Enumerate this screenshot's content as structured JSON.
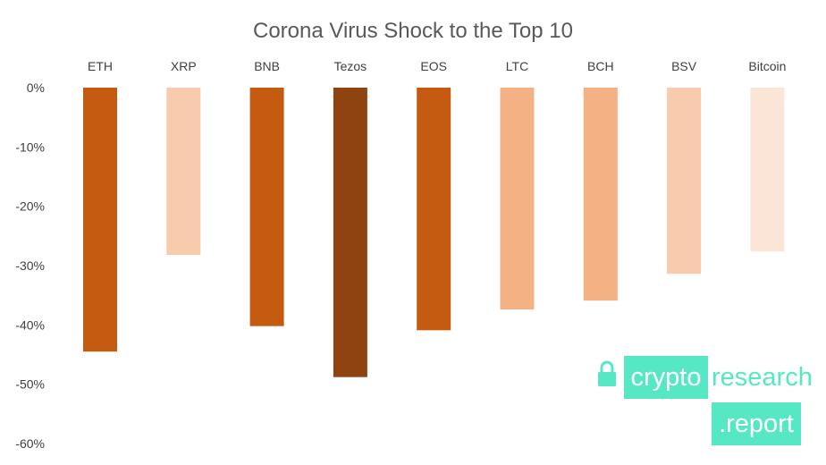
{
  "chart_data": {
    "type": "bar",
    "title": "Corona Virus Shock to the Top 10",
    "categories": [
      "ETH",
      "XRP",
      "BNB",
      "Tezos",
      "EOS",
      "LTC",
      "BCH",
      "BSV",
      "Bitcoin"
    ],
    "values": [
      -44.5,
      -28.2,
      -40.2,
      -48.8,
      -40.9,
      -37.4,
      -35.9,
      -31.4,
      -27.6
    ],
    "colors": [
      "#c55a11",
      "#f8cbad",
      "#c55a11",
      "#8f4311",
      "#c55a11",
      "#f4b183",
      "#f4b183",
      "#f8cbad",
      "#fbe5d6"
    ],
    "ylim": [
      -60,
      0
    ],
    "yticks": [
      0,
      -10,
      -20,
      -30,
      -40,
      -50,
      -60
    ],
    "ytick_labels": [
      "0%",
      "-10%",
      "-20%",
      "-30%",
      "-40%",
      "-50%",
      "-60%"
    ],
    "x_axis_position": "top",
    "grid": false,
    "legend": "none",
    "xlabel": "",
    "ylabel": ""
  },
  "logo": {
    "word1": "crypto",
    "word2": "research",
    "word3": ".report",
    "color": "#56e8c4",
    "icon": "lock-icon"
  }
}
